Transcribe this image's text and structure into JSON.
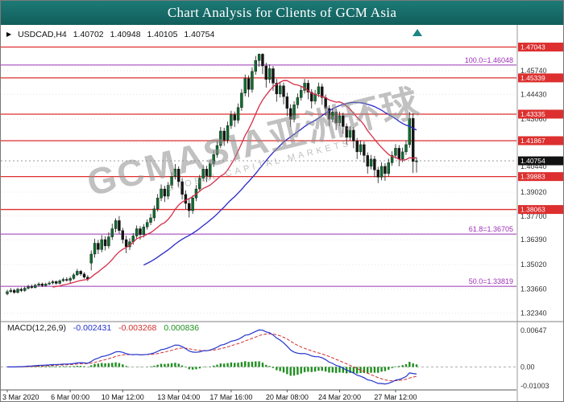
{
  "window": {
    "title": "Chart Analysis for Clients of GCM Asia"
  },
  "info_bar": {
    "marker": "▶",
    "symbol": "USDCAD,H4",
    "open": "1.40702",
    "high": "1.40948",
    "low": "1.40105",
    "close": "1.40754"
  },
  "watermark": {
    "text": "GCMASIA亚洲环球",
    "subtext": "GLOBAL CAPITAL MARKETS"
  },
  "colors": {
    "title_bg": "#166a6a",
    "bull": "#0d6e2e",
    "bear": "#141414",
    "ma_fast": "#d62e4a",
    "ma_slow": "#2929c8",
    "level": "#dd2f2f",
    "fib": "#9b30b5",
    "macd_main": "#2233cc",
    "macd_signal": "#d03030",
    "macd_hist": "#1f8f1f",
    "badge_current": "#111111",
    "grid": "#e3e3e3",
    "axis_text": "#333333",
    "shift_icon": "#1e8585"
  },
  "chart_data": {
    "type": "candlestick",
    "symbol": "USDCAD",
    "timeframe": "H4",
    "y_range": [
      1.32,
      1.48
    ],
    "price_grid": [
      {
        "text": "1.45740",
        "value": 1.4574
      },
      {
        "text": "1.44430",
        "value": 1.4443
      },
      {
        "text": "1.43060",
        "value": 1.4306
      },
      {
        "text": "1.41750",
        "value": 1.4175
      },
      {
        "text": "1.40440",
        "value": 1.4044
      },
      {
        "text": "1.39020",
        "value": 1.3902
      },
      {
        "text": "1.37700",
        "value": 1.377
      },
      {
        "text": "1.36390",
        "value": 1.3639
      },
      {
        "text": "1.35020",
        "value": 1.3502
      },
      {
        "text": "1.33660",
        "value": 1.3366
      },
      {
        "text": "1.32340",
        "value": 1.3234
      }
    ],
    "x_labels": [
      {
        "text": "3 Mar 2020",
        "i": 0
      },
      {
        "text": "6 Mar 00:00",
        "i": 18
      },
      {
        "text": "10 Mar 12:00",
        "i": 33
      },
      {
        "text": "13 Mar 04:00",
        "i": 49
      },
      {
        "text": "17 Mar 16:00",
        "i": 64
      },
      {
        "text": "20 Mar 08:00",
        "i": 80
      },
      {
        "text": "24 Mar 20:00",
        "i": 95
      },
      {
        "text": "27 Mar 12:00",
        "i": 111
      }
    ],
    "resistance_levels": [
      {
        "text": "1.47043",
        "value": 1.47043
      },
      {
        "text": "1.45339",
        "value": 1.45339
      },
      {
        "text": "1.43335",
        "value": 1.43335
      },
      {
        "text": "1.41867",
        "value": 1.41867
      },
      {
        "text": "1.39883",
        "value": 1.39883
      },
      {
        "text": "1.38063",
        "value": 1.38063
      }
    ],
    "fib_levels": [
      {
        "text": "100.0=1.46048",
        "value": 1.46048
      },
      {
        "text": "61.8=1.36705",
        "value": 1.36705
      },
      {
        "text": "50.0=1.33819",
        "value": 1.33819
      }
    ],
    "current_price": {
      "text": "1.40754",
      "value": 1.40754
    },
    "moving_averages": [
      {
        "period": 14,
        "style": "fast"
      },
      {
        "period": 40,
        "style": "slow"
      }
    ],
    "macd": {
      "label": "MACD(12,26,9)",
      "fast": 12,
      "slow": 26,
      "signal": 9,
      "main": "-0.002431",
      "signal_value": "-0.003268",
      "histogram": "0.000836",
      "axis_labels": [
        "0.00647",
        "0.00",
        "-0.01003"
      ]
    },
    "ohlc": [
      [
        1.334,
        1.3362,
        1.3332,
        1.3352
      ],
      [
        1.3352,
        1.3372,
        1.3346,
        1.336
      ],
      [
        1.336,
        1.3368,
        1.334,
        1.3348
      ],
      [
        1.3348,
        1.3374,
        1.3342,
        1.3366
      ],
      [
        1.3366,
        1.3375,
        1.335,
        1.3358
      ],
      [
        1.3358,
        1.338,
        1.3352,
        1.3371
      ],
      [
        1.3371,
        1.339,
        1.3364,
        1.338
      ],
      [
        1.338,
        1.3392,
        1.3368,
        1.3375
      ],
      [
        1.3375,
        1.3396,
        1.337,
        1.3388
      ],
      [
        1.3388,
        1.3404,
        1.338,
        1.3395
      ],
      [
        1.3395,
        1.3402,
        1.3378,
        1.3386
      ],
      [
        1.3386,
        1.3402,
        1.338,
        1.3394
      ],
      [
        1.3394,
        1.341,
        1.3388,
        1.34
      ],
      [
        1.34,
        1.3416,
        1.3392,
        1.3408
      ],
      [
        1.3408,
        1.3414,
        1.339,
        1.3398
      ],
      [
        1.3398,
        1.342,
        1.3392,
        1.3412
      ],
      [
        1.3412,
        1.343,
        1.3406,
        1.342
      ],
      [
        1.342,
        1.3432,
        1.3408,
        1.3415
      ],
      [
        1.3415,
        1.3436,
        1.34,
        1.3425
      ],
      [
        1.3425,
        1.3455,
        1.3418,
        1.3445
      ],
      [
        1.3445,
        1.3478,
        1.3438,
        1.3465
      ],
      [
        1.3465,
        1.3472,
        1.344,
        1.345
      ],
      [
        1.345,
        1.346,
        1.3424,
        1.3432
      ],
      [
        1.3432,
        1.3444,
        1.341,
        1.3422
      ],
      [
        1.351,
        1.358,
        1.347,
        1.356
      ],
      [
        1.356,
        1.3645,
        1.354,
        1.362
      ],
      [
        1.362,
        1.3638,
        1.356,
        1.3585
      ],
      [
        1.3585,
        1.3665,
        1.357,
        1.364
      ],
      [
        1.364,
        1.3658,
        1.358,
        1.3605
      ],
      [
        1.3605,
        1.368,
        1.359,
        1.3655
      ],
      [
        1.3655,
        1.3728,
        1.3638,
        1.37
      ],
      [
        1.37,
        1.3758,
        1.368,
        1.3745
      ],
      [
        1.3745,
        1.377,
        1.3672,
        1.369
      ],
      [
        1.369,
        1.3705,
        1.3618,
        1.364
      ],
      [
        1.364,
        1.3662,
        1.3565,
        1.36
      ],
      [
        1.36,
        1.3648,
        1.3582,
        1.3628
      ],
      [
        1.3628,
        1.3676,
        1.3612,
        1.366
      ],
      [
        1.366,
        1.3718,
        1.3645,
        1.37
      ],
      [
        1.37,
        1.3715,
        1.364,
        1.3668
      ],
      [
        1.3668,
        1.3726,
        1.3652,
        1.371
      ],
      [
        1.371,
        1.3752,
        1.3695,
        1.3735
      ],
      [
        1.3735,
        1.3782,
        1.372,
        1.376
      ],
      [
        1.376,
        1.3828,
        1.3742,
        1.381
      ],
      [
        1.381,
        1.3892,
        1.3795,
        1.387
      ],
      [
        1.387,
        1.3945,
        1.3852,
        1.392
      ],
      [
        1.392,
        1.3938,
        1.3848,
        1.388
      ],
      [
        1.388,
        1.3958,
        1.3862,
        1.394
      ],
      [
        1.394,
        1.4012,
        1.3922,
        1.399
      ],
      [
        1.399,
        1.4058,
        1.3972,
        1.403
      ],
      [
        1.403,
        1.4045,
        1.3932,
        1.396
      ],
      [
        1.396,
        1.398,
        1.3862,
        1.389
      ],
      [
        1.389,
        1.3912,
        1.3808,
        1.384
      ],
      [
        1.384,
        1.3868,
        1.3762,
        1.38
      ],
      [
        1.38,
        1.3885,
        1.3782,
        1.387
      ],
      [
        1.387,
        1.3942,
        1.3852,
        1.392
      ],
      [
        1.392,
        1.3998,
        1.3905,
        1.398
      ],
      [
        1.398,
        1.4052,
        1.3962,
        1.403
      ],
      [
        1.403,
        1.4048,
        1.3958,
        1.399
      ],
      [
        1.399,
        1.4078,
        1.3972,
        1.406
      ],
      [
        1.406,
        1.4132,
        1.4042,
        1.411
      ],
      [
        1.411,
        1.4185,
        1.4092,
        1.416
      ],
      [
        1.416,
        1.4262,
        1.4145,
        1.424
      ],
      [
        1.424,
        1.4258,
        1.4158,
        1.419
      ],
      [
        1.419,
        1.4292,
        1.4172,
        1.427
      ],
      [
        1.427,
        1.4352,
        1.4252,
        1.433
      ],
      [
        1.433,
        1.4348,
        1.4262,
        1.43
      ],
      [
        1.43,
        1.4392,
        1.4282,
        1.437
      ],
      [
        1.437,
        1.4472,
        1.4352,
        1.445
      ],
      [
        1.445,
        1.4552,
        1.4432,
        1.453
      ],
      [
        1.453,
        1.4548,
        1.4428,
        1.447
      ],
      [
        1.447,
        1.4592,
        1.4452,
        1.457
      ],
      [
        1.457,
        1.4655,
        1.4552,
        1.463
      ],
      [
        1.463,
        1.4668,
        1.4595,
        1.4665
      ],
      [
        1.4665,
        1.467,
        1.4555,
        1.46
      ],
      [
        1.46,
        1.4618,
        1.448,
        1.4525
      ],
      [
        1.4525,
        1.4608,
        1.4505,
        1.4585
      ],
      [
        1.4585,
        1.46,
        1.4462,
        1.4505
      ],
      [
        1.4505,
        1.4528,
        1.4402,
        1.4445
      ],
      [
        1.4445,
        1.4512,
        1.4425,
        1.449
      ],
      [
        1.449,
        1.4508,
        1.4388,
        1.443
      ],
      [
        1.443,
        1.4452,
        1.4322,
        1.4365
      ],
      [
        1.4365,
        1.4388,
        1.4262,
        1.4305
      ],
      [
        1.4305,
        1.4405,
        1.4288,
        1.4385
      ],
      [
        1.4385,
        1.4448,
        1.4365,
        1.4425
      ],
      [
        1.4425,
        1.4488,
        1.4408,
        1.4465
      ],
      [
        1.4465,
        1.4528,
        1.4448,
        1.4505
      ],
      [
        1.4505,
        1.4522,
        1.4415,
        1.4455
      ],
      [
        1.4455,
        1.4472,
        1.4365,
        1.4405
      ],
      [
        1.4405,
        1.4468,
        1.4388,
        1.4445
      ],
      [
        1.4445,
        1.4508,
        1.4428,
        1.4485
      ],
      [
        1.4485,
        1.4502,
        1.4385,
        1.4425
      ],
      [
        1.4425,
        1.4442,
        1.4325,
        1.4365
      ],
      [
        1.4365,
        1.4382,
        1.4265,
        1.4305
      ],
      [
        1.4305,
        1.4368,
        1.4288,
        1.4345
      ],
      [
        1.4345,
        1.4362,
        1.4245,
        1.4285
      ],
      [
        1.4285,
        1.4348,
        1.4268,
        1.4325
      ],
      [
        1.4325,
        1.4342,
        1.4225,
        1.4265
      ],
      [
        1.4265,
        1.4282,
        1.4165,
        1.4205
      ],
      [
        1.4205,
        1.4268,
        1.4188,
        1.4245
      ],
      [
        1.4245,
        1.4262,
        1.4145,
        1.4185
      ],
      [
        1.4185,
        1.4202,
        1.4085,
        1.4125
      ],
      [
        1.4125,
        1.4188,
        1.4108,
        1.4165
      ],
      [
        1.4165,
        1.4182,
        1.4065,
        1.4105
      ],
      [
        1.4105,
        1.4122,
        1.4005,
        1.4045
      ],
      [
        1.4045,
        1.4108,
        1.4028,
        1.4085
      ],
      [
        1.4085,
        1.4102,
        1.3985,
        1.4025
      ],
      [
        1.4025,
        1.4042,
        1.3952,
        1.3985
      ],
      [
        1.3985,
        1.4068,
        1.3968,
        1.4045
      ],
      [
        1.4045,
        1.4062,
        1.3965,
        1.4005
      ],
      [
        1.4005,
        1.4088,
        1.3988,
        1.4065
      ],
      [
        1.4065,
        1.4128,
        1.4048,
        1.4105
      ],
      [
        1.4105,
        1.4168,
        1.4088,
        1.4145
      ],
      [
        1.4145,
        1.4162,
        1.4045,
        1.4085
      ],
      [
        1.4085,
        1.4148,
        1.4068,
        1.4125
      ],
      [
        1.4125,
        1.4188,
        1.4108,
        1.4165
      ],
      [
        1.4165,
        1.4345,
        1.4148,
        1.431
      ],
      [
        1.431,
        1.4338,
        1.4008,
        1.4072
      ],
      [
        1.40702,
        1.40948,
        1.40105,
        1.40754
      ]
    ]
  }
}
